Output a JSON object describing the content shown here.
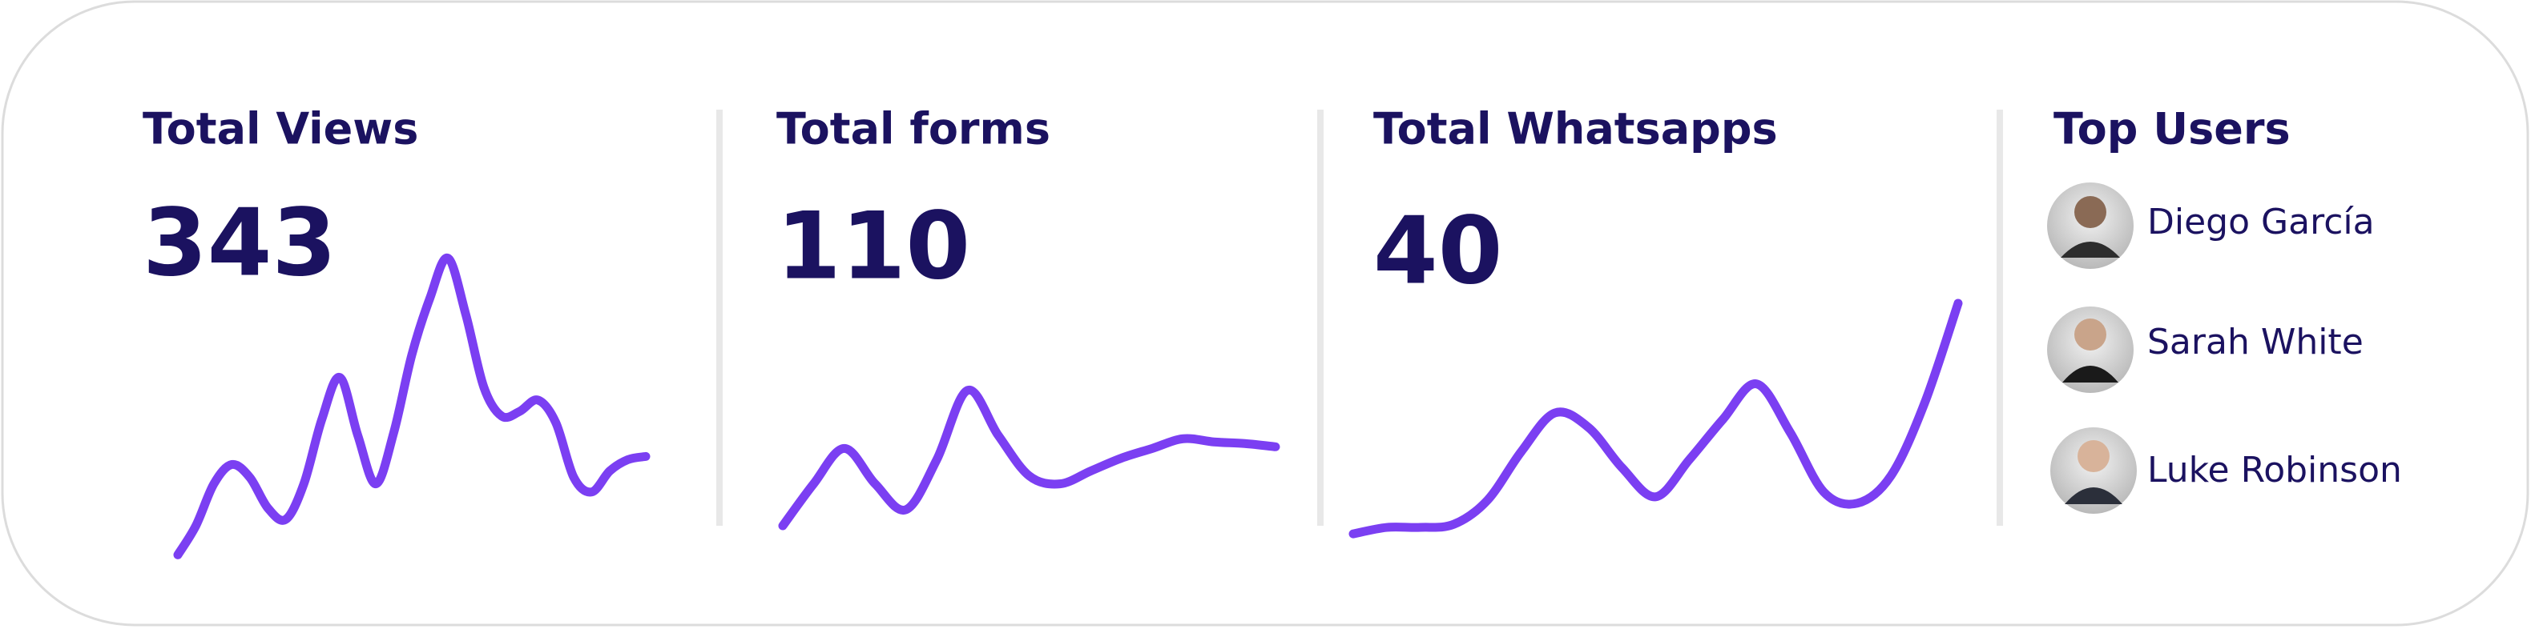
{
  "panels": [
    {
      "title": "Total Views",
      "value": "343",
      "trend": [
        46,
        64,
        90,
        102,
        94,
        75,
        68,
        90,
        130,
        156,
        120,
        90,
        122,
        170,
        205,
        230,
        195,
        150,
        132,
        135,
        142,
        128,
        94,
        85,
        98,
        105,
        107
      ]
    },
    {
      "title": "Total forms",
      "value": "110",
      "trend": [
        64,
        90,
        112,
        90,
        74,
        105,
        148,
        120,
        95,
        90,
        98,
        106,
        112,
        118,
        116,
        115,
        113
      ]
    },
    {
      "title": "Total Whatsapps",
      "value": "40",
      "trend": [
        59,
        63,
        63,
        65,
        80,
        110,
        134,
        125,
        100,
        82,
        105,
        130,
        152,
        122,
        85,
        78,
        95,
        140,
        202
      ]
    }
  ],
  "top_users": {
    "title": "Top Users",
    "users": [
      "Diego García",
      "Sarah White",
      "Luke Robinson"
    ]
  }
}
